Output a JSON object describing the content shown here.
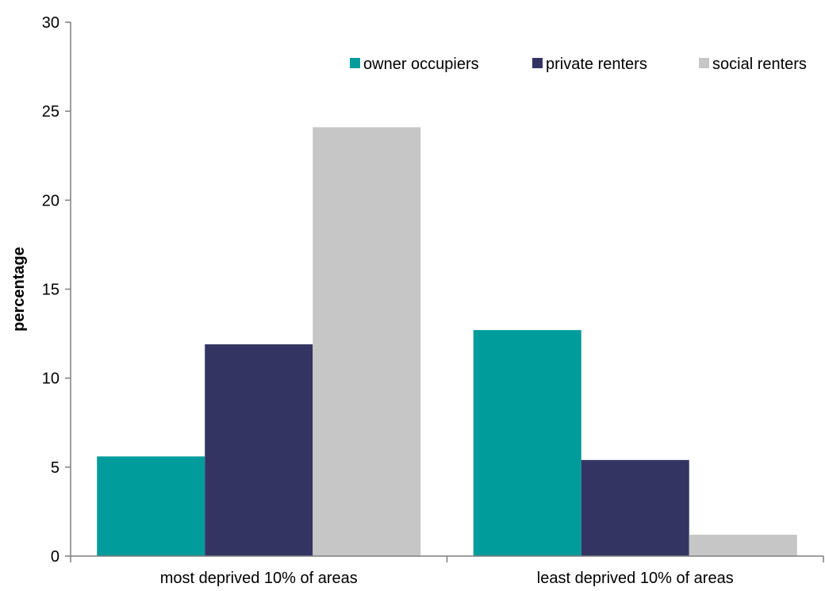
{
  "chart_data": {
    "type": "bar",
    "title": "",
    "xlabel": "",
    "ylabel": "percentage",
    "ylim": [
      0,
      30
    ],
    "yticks": [
      0,
      5,
      10,
      15,
      20,
      25,
      30
    ],
    "categories": [
      "most deprived 10% of areas",
      "least deprived 10% of areas"
    ],
    "series": [
      {
        "name": "owner occupiers",
        "color": "#009B9B",
        "values": [
          5.6,
          12.7
        ]
      },
      {
        "name": "private renters",
        "color": "#343463",
        "values": [
          11.9,
          5.4
        ]
      },
      {
        "name": "social renters",
        "color": "#C6C6C6",
        "values": [
          24.1,
          1.2
        ]
      }
    ],
    "legend_position": "top-right",
    "grid": false
  }
}
